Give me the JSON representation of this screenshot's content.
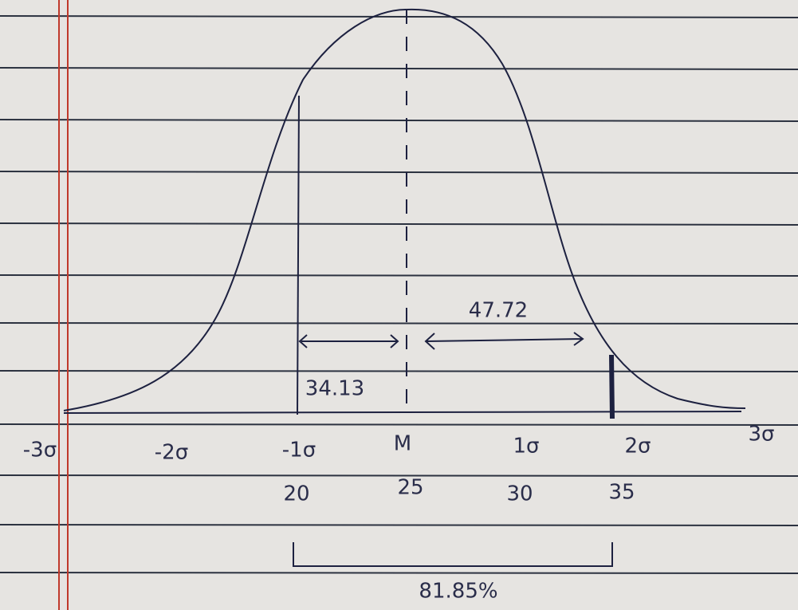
{
  "sigma_labels": [
    "-3σ",
    "-2σ",
    "-1σ",
    "M",
    "1σ",
    "2σ",
    "3σ"
  ],
  "value_labels": [
    "20",
    "25",
    "30",
    "35"
  ],
  "areas": {
    "left": "34.13",
    "right": "47.72",
    "total": "81.85%"
  }
}
